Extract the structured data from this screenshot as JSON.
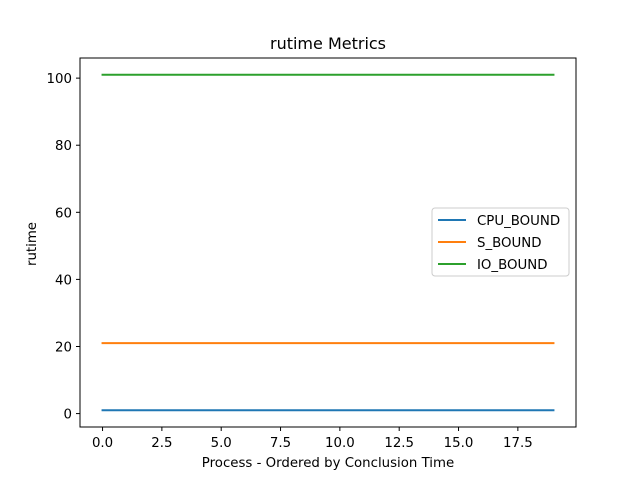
{
  "chart_data": {
    "type": "line",
    "title": "rutime Metrics",
    "xlabel": "Process - Ordered by Conclusion Time",
    "ylabel": "rutime",
    "xlim": [
      -0.95,
      19.95
    ],
    "ylim": [
      -4.0,
      106.0
    ],
    "xticks": [
      0.0,
      2.5,
      5.0,
      7.5,
      10.0,
      12.5,
      15.0,
      17.5
    ],
    "xtick_labels": [
      "0.0",
      "2.5",
      "5.0",
      "7.5",
      "10.0",
      "12.5",
      "15.0",
      "17.5"
    ],
    "yticks": [
      0,
      20,
      40,
      60,
      80,
      100
    ],
    "ytick_labels": [
      "0",
      "20",
      "40",
      "60",
      "80",
      "100"
    ],
    "grid": false,
    "legend_position": "center-right",
    "x": [
      0,
      1,
      2,
      3,
      4,
      5,
      6,
      7,
      8,
      9,
      10,
      11,
      12,
      13,
      14,
      15,
      16,
      17,
      18,
      19
    ],
    "series": [
      {
        "name": "CPU_BOUND",
        "color": "#1f77b4",
        "values": [
          1,
          1,
          1,
          1,
          1,
          1,
          1,
          1,
          1,
          1,
          1,
          1,
          1,
          1,
          1,
          1,
          1,
          1,
          1,
          1
        ]
      },
      {
        "name": "S_BOUND",
        "color": "#ff7f0e",
        "values": [
          21,
          21,
          21,
          21,
          21,
          21,
          21,
          21,
          21,
          21,
          21,
          21,
          21,
          21,
          21,
          21,
          21,
          21,
          21,
          21
        ]
      },
      {
        "name": "IO_BOUND",
        "color": "#2ca02c",
        "values": [
          101,
          101,
          101,
          101,
          101,
          101,
          101,
          101,
          101,
          101,
          101,
          101,
          101,
          101,
          101,
          101,
          101,
          101,
          101,
          101
        ]
      }
    ]
  }
}
